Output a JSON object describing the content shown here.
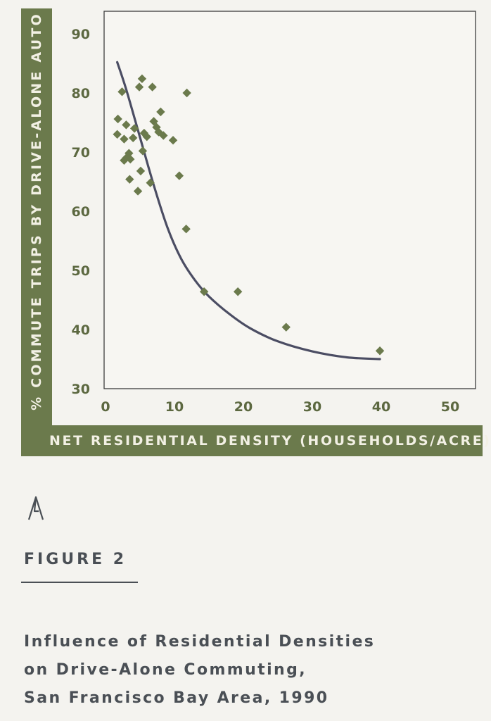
{
  "figure": {
    "number_label": "FIGURE 2",
    "caption_lines": [
      "Influence of Residential Densities",
      "on Drive-Alone Commuting,",
      "San Francisco Bay Area, 1990"
    ]
  },
  "colors": {
    "band": "#6b7a4c",
    "marker": "#6b7a4c",
    "curve": "#4b4d63",
    "text": "#4a4f55"
  },
  "chart_data": {
    "type": "scatter",
    "title": "",
    "xlabel": "NET RESIDENTIAL DENSITY (HOUSEHOLDS/ACRE)",
    "ylabel": "% COMMUTE TRIPS BY DRIVE-ALONE AUTO",
    "xlim": [
      0,
      52
    ],
    "ylim": [
      30,
      90
    ],
    "xticks": [
      0,
      10,
      20,
      30,
      40,
      50
    ],
    "yticks": [
      30,
      40,
      50,
      60,
      70,
      80,
      90
    ],
    "grid": false,
    "legend": "none",
    "series": [
      {
        "kind": "points",
        "marker": "diamond",
        "x": [
          1.7,
          2.4,
          1.8,
          3.0,
          2.7,
          4.2,
          3.4,
          2.7,
          3.0,
          3.6,
          4.0,
          3.5,
          4.7,
          5.1,
          5.4,
          5.6,
          6.0,
          6.5,
          4.9,
          5.3,
          6.8,
          7.0,
          7.4,
          7.7,
          8.0,
          8.4,
          9.8,
          10.7,
          11.7,
          11.8,
          14.3,
          19.2,
          26.2,
          39.8
        ],
        "y": [
          73.0,
          80.2,
          75.6,
          74.6,
          72.2,
          74.0,
          69.8,
          68.6,
          69.0,
          68.8,
          72.4,
          65.4,
          63.4,
          66.8,
          70.2,
          73.2,
          72.6,
          64.8,
          81.0,
          82.4,
          81.0,
          75.2,
          74.2,
          73.4,
          76.8,
          72.8,
          72.0,
          66.0,
          57.0,
          80.0,
          46.4,
          46.4,
          40.4,
          36.4
        ]
      },
      {
        "kind": "fitted-curve",
        "x": [
          1.7,
          3.0,
          5.0,
          7.0,
          9.0,
          11.0,
          13.0,
          15.0,
          18.0,
          21.0,
          25.0,
          30.0,
          35.0,
          39.8
        ],
        "y": [
          85.2,
          80.6,
          72.5,
          64.4,
          57.2,
          51.9,
          48.3,
          45.6,
          42.6,
          40.2,
          38.0,
          36.3,
          35.3,
          35.0
        ]
      }
    ]
  }
}
